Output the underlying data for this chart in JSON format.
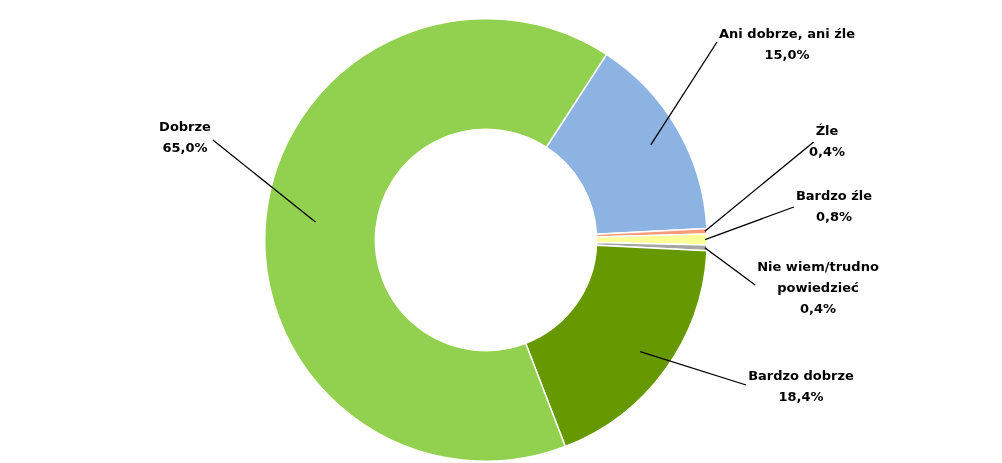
{
  "chart_data": {
    "type": "donut",
    "categories": [
      "Ani dobrze, ani źle",
      "Źle",
      "Bardzo źle",
      "Nie wiem/trudno powiedzieć",
      "Bardzo dobrze",
      "Dobrze"
    ],
    "values": [
      15.0,
      0.4,
      0.8,
      0.4,
      18.4,
      65.0
    ],
    "value_labels": [
      "15,0%",
      "0,4%",
      "0,8%",
      "0,4%",
      "18,4%",
      "65,0%"
    ],
    "colors": [
      "#8db3e2",
      "#f79b7b",
      "#ffff99",
      "#a6a6a6",
      "#669900",
      "#92d050"
    ],
    "legend": false
  }
}
